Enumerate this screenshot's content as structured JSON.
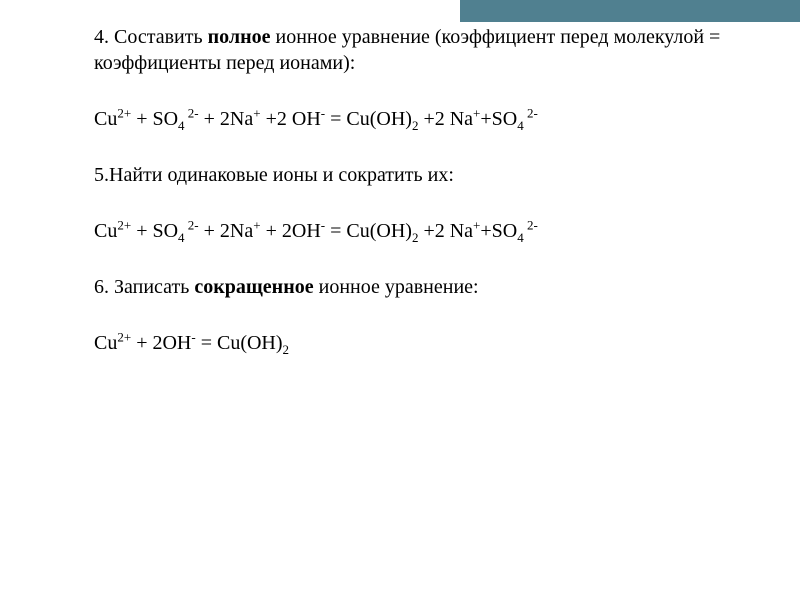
{
  "accent_color": "#508090",
  "background_color": "#ffffff",
  "text_color": "#000000",
  "font_family": "Georgia, Times New Roman, serif",
  "base_font_size": 20,
  "section1": {
    "text_before_bold": "4. Составить ",
    "bold_word": "полное",
    "text_after_bold": " ионное уравнение (коэффициент перед молекулой = коэффициенты перед ионами):"
  },
  "equation1": {
    "parts": {
      "p1": "Cu",
      "p2": "2+",
      "p3": "  + SO",
      "p4": "4",
      "p5": " 2-",
      "p6": "  + 2Na",
      "p7": "+",
      "p8": "  +2 OH",
      "p9": "-",
      "p10": " = Cu(OH)",
      "p11": "2",
      "p12": "  +2 Na",
      "p13": "+",
      "p14": "+SO",
      "p15": "4",
      "p16": " 2-"
    }
  },
  "section2": {
    "text": "5.Найти одинаковые ионы и сократить их:"
  },
  "equation2": {
    "parts": {
      "p1": "Cu",
      "p2": "2+",
      "p3": "  + SO",
      "p4": "4",
      "p5": " 2-",
      "p6": "  + 2Na",
      "p7": "+",
      "p8": "  + 2OH",
      "p9": "-",
      "p10": " = Cu(OH)",
      "p11": "2",
      "p12": "  +2 Na",
      "p13": "+",
      "p14": "+SO",
      "p15": "4",
      "p16": " 2-"
    }
  },
  "section3": {
    "text_before_bold": "6. Записать ",
    "bold_word": "сокращенное",
    "text_after_bold": " ионное уравнение:"
  },
  "equation3": {
    "parts": {
      "p1": "Cu",
      "p2": "2+",
      "p3": "  + 2OH",
      "p4": "-",
      "p5": "  = Cu(OH)",
      "p6": "2"
    }
  }
}
